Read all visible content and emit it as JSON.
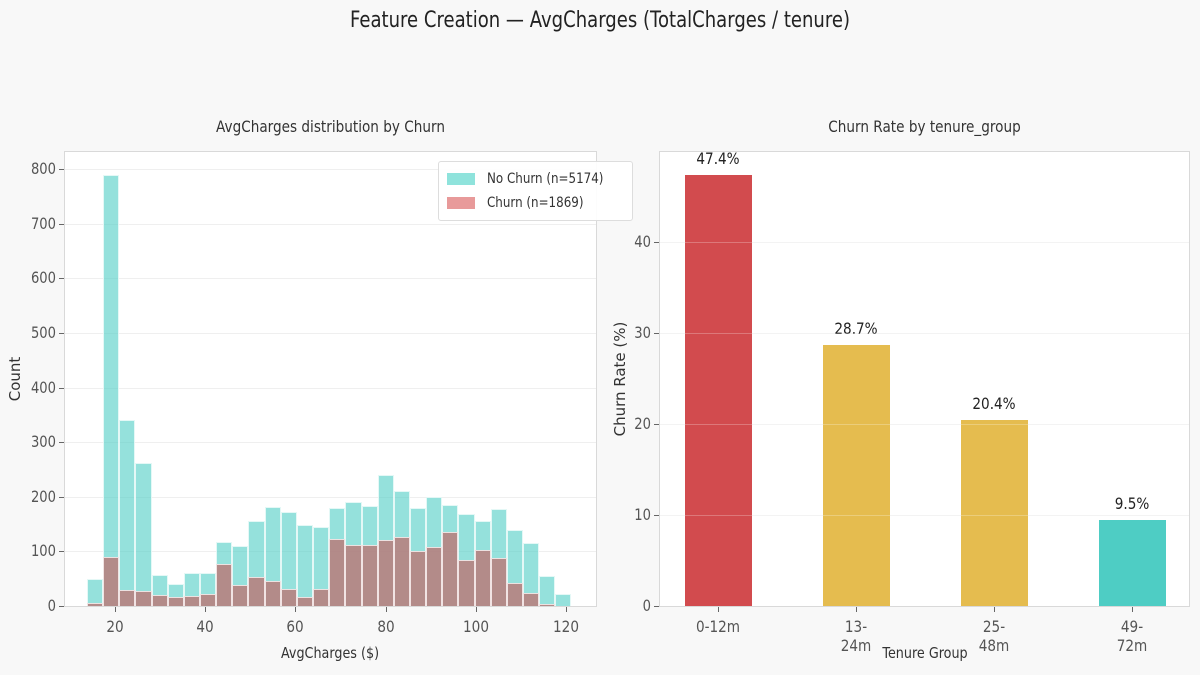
{
  "figure": {
    "title": "Feature Creation — AvgCharges (TotalCharges / tenure)",
    "background": "#f8f8f8"
  },
  "left_chart": {
    "title": "AvgCharges distribution by Churn",
    "xlabel": "AvgCharges ($)",
    "ylabel": "Count",
    "yticks": [
      "0",
      "100",
      "200",
      "300",
      "400",
      "500",
      "600",
      "700",
      "800"
    ],
    "xticks": [
      "20",
      "40",
      "60",
      "80",
      "100",
      "120"
    ],
    "legend": [
      {
        "label": "No Churn (n=5174)",
        "color": "#8fe3dc"
      },
      {
        "label": "Churn (n=1869)",
        "color": "#e89a9a"
      }
    ]
  },
  "right_chart": {
    "title": "Churn Rate by tenure_group",
    "xlabel": "Tenure Group",
    "ylabel": "Churn Rate (%)",
    "yticks": [
      "0",
      "10",
      "20",
      "30",
      "40"
    ],
    "bars": [
      {
        "label": "0-12m",
        "value": 47.4,
        "text": "47.4%",
        "color": "#d24b4e"
      },
      {
        "label": "13-24m",
        "value": 28.7,
        "text": "28.7%",
        "color": "#e5bc4f"
      },
      {
        "label": "25-48m",
        "value": 20.4,
        "text": "20.4%",
        "color": "#e5bc4f"
      },
      {
        "label": "49-72m",
        "value": 9.5,
        "text": "9.5%",
        "color": "#4ecdc4"
      }
    ]
  },
  "chart_data": [
    {
      "type": "bar",
      "subtype": "histogram",
      "title": "AvgCharges distribution by Churn",
      "xlabel": "AvgCharges ($)",
      "ylabel": "Count",
      "xlim": [
        10,
        128
      ],
      "ylim": [
        0,
        830
      ],
      "grid": true,
      "legend_position": "upper right",
      "bin_start": 13.8,
      "bin_width": 3.58,
      "series": [
        {
          "name": "No Churn (n=5174)",
          "color": "#4ecdc4",
          "values": [
            50,
            790,
            340,
            262,
            57,
            41,
            60,
            60,
            117,
            110,
            156,
            181,
            173,
            148,
            145,
            179,
            191,
            183,
            240,
            210,
            180,
            200,
            185,
            168,
            156,
            178,
            139,
            115,
            55,
            22
          ]
        },
        {
          "name": "Churn (n=1869)",
          "color": "#e07b7b",
          "values": [
            5,
            90,
            30,
            28,
            20,
            16,
            18,
            22,
            77,
            38,
            53,
            46,
            31,
            17,
            31,
            123,
            112,
            112,
            121,
            126,
            101,
            108,
            136,
            84,
            103,
            88,
            42,
            24,
            4,
            0
          ]
        }
      ]
    },
    {
      "type": "bar",
      "title": "Churn Rate by tenure_group",
      "xlabel": "Tenure Group",
      "ylabel": "Churn Rate (%)",
      "categories": [
        "0-12m",
        "13-24m",
        "25-48m",
        "49-72m"
      ],
      "values": [
        47.4,
        28.7,
        20.4,
        9.5
      ],
      "data_labels": [
        "47.4%",
        "28.7%",
        "20.4%",
        "9.5%"
      ],
      "ylim": [
        0,
        50
      ],
      "grid": true
    }
  ]
}
